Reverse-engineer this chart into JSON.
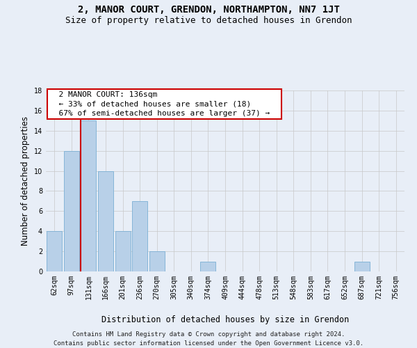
{
  "title": "2, MANOR COURT, GRENDON, NORTHAMPTON, NN7 1JT",
  "subtitle": "Size of property relative to detached houses in Grendon",
  "xlabel": "Distribution of detached houses by size in Grendon",
  "ylabel": "Number of detached properties",
  "footer_line1": "Contains HM Land Registry data © Crown copyright and database right 2024.",
  "footer_line2": "Contains public sector information licensed under the Open Government Licence v3.0.",
  "categories": [
    "62sqm",
    "97sqm",
    "131sqm",
    "166sqm",
    "201sqm",
    "236sqm",
    "270sqm",
    "305sqm",
    "340sqm",
    "374sqm",
    "409sqm",
    "444sqm",
    "478sqm",
    "513sqm",
    "548sqm",
    "583sqm",
    "617sqm",
    "652sqm",
    "687sqm",
    "721sqm",
    "756sqm"
  ],
  "values": [
    4,
    12,
    15,
    10,
    4,
    7,
    2,
    0,
    0,
    1,
    0,
    0,
    0,
    0,
    0,
    0,
    0,
    0,
    1,
    0,
    0
  ],
  "bar_color": "#b8d0e8",
  "bar_edge_color": "#7aafd4",
  "highlight_index": 2,
  "highlight_line_color": "#cc0000",
  "ylim": [
    0,
    18
  ],
  "yticks": [
    0,
    2,
    4,
    6,
    8,
    10,
    12,
    14,
    16,
    18
  ],
  "annotation_text": "  2 MANOR COURT: 136sqm  \n  ← 33% of detached houses are smaller (18)  \n  67% of semi-detached houses are larger (37) →  ",
  "annotation_box_color": "#ffffff",
  "annotation_border_color": "#cc0000",
  "background_color": "#e8eef7",
  "plot_bg_color": "#e8eef7",
  "grid_color": "#c8c8c8",
  "title_fontsize": 10,
  "subtitle_fontsize": 9,
  "xlabel_fontsize": 8.5,
  "ylabel_fontsize": 8.5,
  "tick_fontsize": 7,
  "annotation_fontsize": 8,
  "footer_fontsize": 6.5
}
